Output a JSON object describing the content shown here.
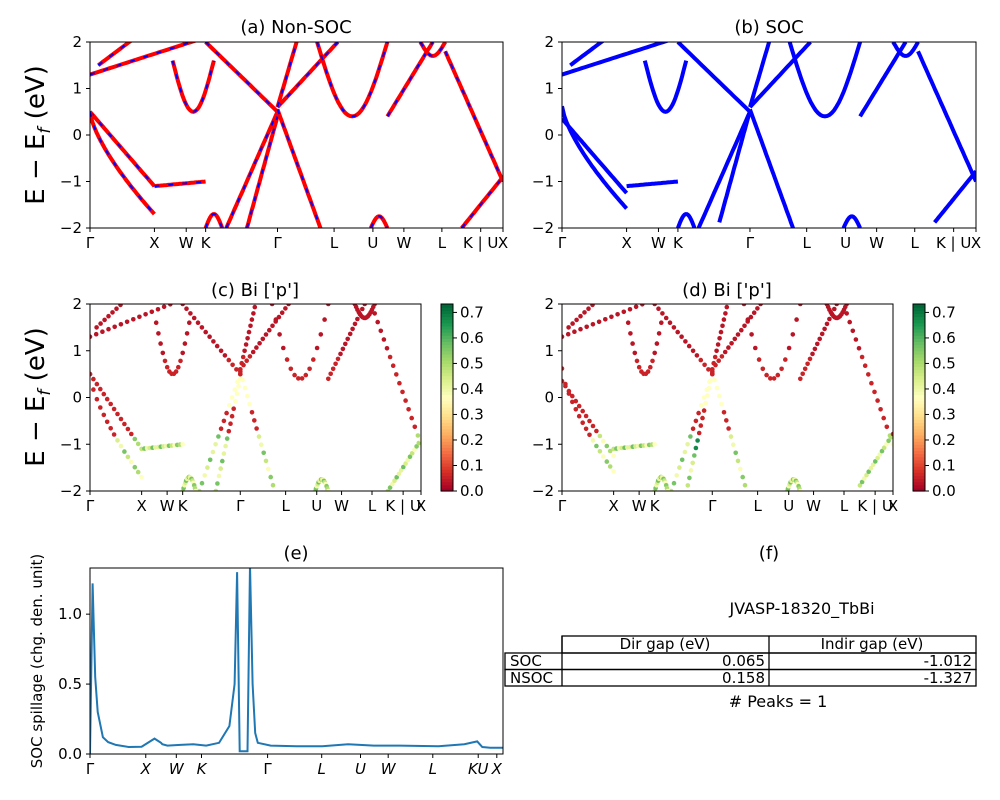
{
  "material_label": "JVASP-18320_TbBi",
  "ylabel_band": "E − E",
  "ylabel_band_sub": "f",
  "ylabel_band_unit": " (eV)",
  "colors": {
    "nonsoc_band": "#ff0000",
    "nonsoc_dash": "#0000ff",
    "soc_band": "#0000ff",
    "spillage": "#1f77b4"
  },
  "chart_data": [
    {
      "panel": "a",
      "type": "line",
      "title": "(a) Non-SOC",
      "ylim": [
        -2,
        2
      ],
      "yticks": [
        "2",
        "1",
        "0",
        "−1",
        "−2"
      ],
      "kpath_labels": [
        "Γ",
        "X",
        "W",
        "K",
        "Γ",
        "L",
        "U",
        "W",
        "L",
        "K | U",
        "X"
      ]
    },
    {
      "panel": "b",
      "type": "line",
      "title": "(b) SOC",
      "ylim": [
        -2,
        2
      ],
      "yticks": [
        "2",
        "1",
        "0",
        "−1",
        "−2"
      ],
      "kpath_labels": [
        "Γ",
        "X",
        "W",
        "K",
        "Γ",
        "L",
        "U",
        "W",
        "L",
        "K | U",
        "X"
      ]
    },
    {
      "panel": "c",
      "type": "scatter",
      "title": "(c)  Bi ['p']",
      "ylim": [
        -2,
        2
      ],
      "yticks": [
        "2",
        "1",
        "0",
        "−1",
        "−2"
      ],
      "kpath_labels": [
        "Γ",
        "X",
        "W",
        "K",
        "Γ",
        "L",
        "U",
        "W",
        "L",
        "K | U",
        "X"
      ],
      "colorbar": {
        "min": 0.0,
        "max": 0.7,
        "ticks": [
          "0.7",
          "0.6",
          "0.5",
          "0.4",
          "0.3",
          "0.2",
          "0.1",
          "0.0"
        ],
        "colormap": "RdYlGn"
      }
    },
    {
      "panel": "d",
      "type": "scatter",
      "title": "(d) Bi ['p']",
      "ylim": [
        -2,
        2
      ],
      "yticks": [
        "2",
        "1",
        "0",
        "−1",
        "−2"
      ],
      "kpath_labels": [
        "Γ",
        "X",
        "W",
        "K",
        "Γ",
        "L",
        "U",
        "W",
        "L",
        "K | U",
        "X"
      ],
      "colorbar": {
        "min": 0.0,
        "max": 0.7,
        "ticks": [
          "0.7",
          "0.6",
          "0.5",
          "0.4",
          "0.3",
          "0.2",
          "0.1",
          "0.0"
        ],
        "colormap": "RdYlGn"
      }
    },
    {
      "panel": "e",
      "type": "line",
      "title": "(e)",
      "ylabel": "SOC spillage (chg. den. unit)",
      "ylim": [
        0,
        1.33
      ],
      "yticks": [
        "1.0",
        "0.5",
        "0.0"
      ],
      "kpath_labels": [
        "Γ",
        "X",
        "W",
        "K",
        "Γ",
        "L",
        "U",
        "W",
        "L",
        "KU",
        "X"
      ],
      "series": [
        {
          "x": [
            0,
            0.01,
            0.02,
            0.03,
            0.05,
            0.07,
            0.1,
            0.15,
            0.2,
            0.25,
            0.275,
            0.28,
            0.3,
            0.35,
            0.4,
            0.45,
            0.5,
            0.54,
            0.56,
            0.57,
            0.58,
            0.59,
            0.6,
            0.61,
            0.62,
            0.63,
            0.64,
            0.65,
            0.7,
            0.8,
            0.9,
            1.0,
            1.1,
            1.2,
            1.35,
            1.45,
            1.5,
            1.52,
            1.55,
            1.6
          ],
          "y": [
            0.0,
            1.22,
            0.55,
            0.3,
            0.12,
            0.085,
            0.065,
            0.05,
            0.052,
            0.11,
            0.08,
            0.07,
            0.06,
            0.065,
            0.07,
            0.06,
            0.08,
            0.2,
            0.5,
            1.3,
            0.02,
            0.02,
            0.02,
            0.02,
            1.35,
            0.5,
            0.15,
            0.08,
            0.06,
            0.055,
            0.055,
            0.07,
            0.06,
            0.06,
            0.055,
            0.07,
            0.09,
            0.05,
            0.045,
            0.045
          ]
        }
      ]
    }
  ],
  "table": {
    "title": "(f)",
    "col_headers": [
      "Dir gap (eV)",
      "Indir gap (eV)"
    ],
    "rows": [
      {
        "label": "SOC",
        "dir": "0.065",
        "indir": "-1.012"
      },
      {
        "label": "NSOC",
        "dir": "0.158",
        "indir": "-1.327"
      }
    ],
    "peaks_text": "# Peaks = 1"
  }
}
